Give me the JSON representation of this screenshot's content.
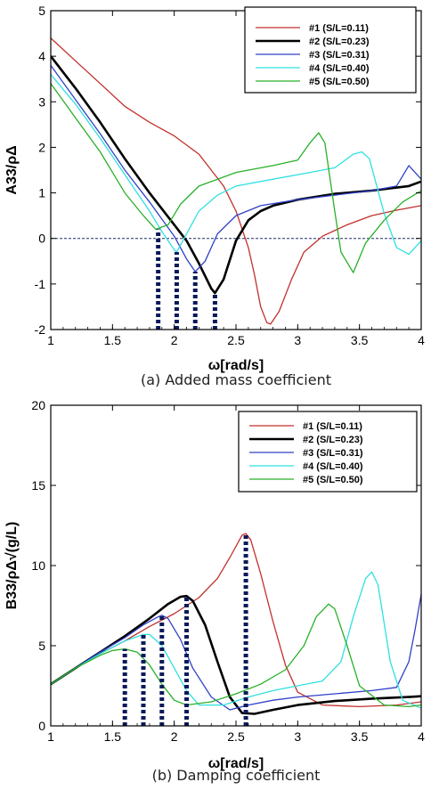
{
  "chart_data": [
    {
      "type": "line",
      "caption": "(a) Added mass coefficient",
      "xlabel": "ω[rad/s]",
      "ylabel": "A33/ρΔ",
      "xlim": [
        1,
        4
      ],
      "ylim": [
        -2,
        5
      ],
      "xticks": [
        "1",
        "1.5",
        "2",
        "2.5",
        "3",
        "3.5",
        "4"
      ],
      "yticks": [
        "-2",
        "-1",
        "0",
        "1",
        "2",
        "3",
        "4",
        "5"
      ],
      "legend_position": "top-right",
      "reference_line_y": 0,
      "series": [
        {
          "name": "#1 (S/L=0.11)",
          "color": "#c0302c",
          "width": 1.3,
          "x": [
            1.0,
            1.2,
            1.4,
            1.6,
            1.8,
            2.0,
            2.2,
            2.4,
            2.5,
            2.6,
            2.65,
            2.7,
            2.75,
            2.78,
            2.85,
            2.95,
            3.05,
            3.2,
            3.4,
            3.6,
            3.8,
            4.0
          ],
          "y": [
            4.4,
            3.9,
            3.4,
            2.9,
            2.55,
            2.25,
            1.85,
            1.15,
            0.6,
            -0.2,
            -0.8,
            -1.5,
            -1.85,
            -1.88,
            -1.6,
            -0.9,
            -0.3,
            0.05,
            0.3,
            0.5,
            0.62,
            0.72
          ]
        },
        {
          "name": "#2 (S/L=0.23)",
          "color": "#000000",
          "width": 2.6,
          "x": [
            1.0,
            1.2,
            1.4,
            1.6,
            1.8,
            2.0,
            2.1,
            2.2,
            2.3,
            2.33,
            2.4,
            2.5,
            2.6,
            2.7,
            2.8,
            3.0,
            3.3,
            3.6,
            3.9,
            4.0
          ],
          "y": [
            4.0,
            3.3,
            2.55,
            1.75,
            1.0,
            0.3,
            -0.05,
            -0.55,
            -1.1,
            -1.2,
            -0.9,
            -0.05,
            0.4,
            0.6,
            0.72,
            0.85,
            0.98,
            1.05,
            1.15,
            1.25
          ]
        },
        {
          "name": "#3 (S/L=0.31)",
          "color": "#3040c8",
          "width": 1.3,
          "x": [
            1.0,
            1.2,
            1.4,
            1.6,
            1.8,
            2.0,
            2.1,
            2.17,
            2.25,
            2.35,
            2.5,
            2.7,
            3.0,
            3.3,
            3.6,
            3.8,
            3.9,
            4.0
          ],
          "y": [
            3.8,
            3.05,
            2.3,
            1.5,
            0.8,
            0.05,
            -0.45,
            -0.73,
            -0.5,
            0.1,
            0.5,
            0.72,
            0.85,
            0.95,
            1.05,
            1.15,
            1.6,
            1.3
          ]
        },
        {
          "name": "#4 (S/L=0.40)",
          "color": "#30e0e0",
          "width": 1.3,
          "x": [
            1.0,
            1.2,
            1.4,
            1.6,
            1.8,
            1.9,
            2.0,
            2.02,
            2.1,
            2.2,
            2.35,
            2.5,
            2.8,
            3.1,
            3.3,
            3.45,
            3.52,
            3.58,
            3.7,
            3.8,
            3.9,
            4.0
          ],
          "y": [
            3.6,
            2.95,
            2.2,
            1.4,
            0.6,
            0.15,
            -0.25,
            -0.3,
            0.1,
            0.6,
            0.95,
            1.15,
            1.3,
            1.45,
            1.55,
            1.85,
            1.9,
            1.75,
            0.55,
            -0.2,
            -0.35,
            -0.05
          ]
        },
        {
          "name": "#5 (S/L=0.50)",
          "color": "#28b028",
          "width": 1.3,
          "x": [
            1.0,
            1.2,
            1.4,
            1.6,
            1.75,
            1.85,
            1.95,
            2.05,
            2.2,
            2.5,
            2.8,
            3.0,
            3.1,
            3.17,
            3.22,
            3.3,
            3.35,
            3.45,
            3.55,
            3.7,
            3.85,
            4.0
          ],
          "y": [
            3.4,
            2.65,
            1.9,
            1.0,
            0.5,
            0.2,
            0.3,
            0.75,
            1.15,
            1.45,
            1.6,
            1.72,
            2.1,
            2.32,
            2.1,
            0.6,
            -0.3,
            -0.75,
            -0.1,
            0.4,
            0.8,
            1.05
          ]
        }
      ],
      "markers": [
        {
          "x": 1.87,
          "y": 0.2
        },
        {
          "x": 2.02,
          "y": -0.3
        },
        {
          "x": 2.17,
          "y": -0.73
        },
        {
          "x": 2.33,
          "y": -1.2
        }
      ]
    },
    {
      "type": "line",
      "caption": "(b) Damping coefficient",
      "xlabel": "ω[rad/s]",
      "ylabel": "B33/ρΔ√(g/L)",
      "xlim": [
        1,
        4
      ],
      "ylim": [
        0,
        20
      ],
      "xticks": [
        "1",
        "1.5",
        "2",
        "2.5",
        "3",
        "3.5",
        "4"
      ],
      "yticks": [
        "0",
        "5",
        "10",
        "15",
        "20"
      ],
      "legend_position": "top-right",
      "series": [
        {
          "name": "#1 (S/L=0.11)",
          "color": "#c0302c",
          "width": 1.3,
          "x": [
            1.0,
            1.2,
            1.4,
            1.6,
            1.8,
            2.0,
            2.2,
            2.35,
            2.45,
            2.55,
            2.58,
            2.62,
            2.7,
            2.8,
            2.9,
            3.0,
            3.2,
            3.5,
            3.8,
            4.0
          ],
          "y": [
            2.6,
            3.6,
            4.5,
            5.3,
            6.2,
            7.0,
            8.0,
            9.2,
            10.5,
            11.9,
            12.0,
            11.6,
            9.5,
            6.5,
            3.8,
            2.1,
            1.3,
            1.2,
            1.3,
            1.5
          ]
        },
        {
          "name": "#2 (S/L=0.23)",
          "color": "#000000",
          "width": 2.6,
          "x": [
            1.0,
            1.2,
            1.4,
            1.6,
            1.8,
            1.95,
            2.05,
            2.1,
            2.15,
            2.25,
            2.35,
            2.45,
            2.55,
            2.65,
            2.8,
            3.0,
            3.3,
            3.6,
            3.9,
            4.0
          ],
          "y": [
            2.6,
            3.6,
            4.6,
            5.6,
            6.7,
            7.6,
            8.05,
            8.1,
            7.8,
            6.3,
            4.0,
            1.8,
            0.8,
            0.75,
            1.0,
            1.3,
            1.55,
            1.7,
            1.8,
            1.85
          ]
        },
        {
          "name": "#3 (S/L=0.31)",
          "color": "#3040c8",
          "width": 1.3,
          "x": [
            1.0,
            1.2,
            1.4,
            1.6,
            1.75,
            1.87,
            1.9,
            1.95,
            2.05,
            2.15,
            2.3,
            2.45,
            2.6,
            2.8,
            3.0,
            3.3,
            3.6,
            3.8,
            3.9,
            3.95,
            4.0
          ],
          "y": [
            2.6,
            3.6,
            4.6,
            5.5,
            6.3,
            6.8,
            6.9,
            6.7,
            5.4,
            3.6,
            1.8,
            1.0,
            1.3,
            1.6,
            1.8,
            2.0,
            2.2,
            2.4,
            4.0,
            6.0,
            8.2
          ]
        },
        {
          "name": "#4 (S/L=0.40)",
          "color": "#30e0e0",
          "width": 1.3,
          "x": [
            1.0,
            1.2,
            1.4,
            1.6,
            1.75,
            1.8,
            1.9,
            2.0,
            2.1,
            2.2,
            2.4,
            2.6,
            2.8,
            3.0,
            3.2,
            3.35,
            3.45,
            3.55,
            3.6,
            3.65,
            3.75,
            3.85,
            4.0
          ],
          "y": [
            2.6,
            3.6,
            4.5,
            5.3,
            5.7,
            5.7,
            5.0,
            3.6,
            2.2,
            1.3,
            1.3,
            1.8,
            2.2,
            2.5,
            2.8,
            4.0,
            6.8,
            9.2,
            9.6,
            8.8,
            4.0,
            1.6,
            1.1
          ]
        },
        {
          "name": "#5 (S/L=0.50)",
          "color": "#28b028",
          "width": 1.3,
          "x": [
            1.0,
            1.2,
            1.4,
            1.5,
            1.6,
            1.7,
            1.8,
            1.9,
            2.0,
            2.1,
            2.3,
            2.5,
            2.7,
            2.9,
            3.05,
            3.15,
            3.25,
            3.3,
            3.4,
            3.5,
            3.7,
            3.9,
            4.0
          ],
          "y": [
            2.6,
            3.6,
            4.4,
            4.7,
            4.8,
            4.6,
            3.8,
            2.6,
            1.6,
            1.3,
            1.5,
            2.0,
            2.6,
            3.5,
            5.0,
            6.8,
            7.6,
            7.3,
            5.0,
            2.5,
            1.3,
            1.2,
            1.3
          ]
        }
      ],
      "markers": [
        {
          "x": 1.6,
          "y": 4.8
        },
        {
          "x": 1.75,
          "y": 5.7
        },
        {
          "x": 1.9,
          "y": 6.9
        },
        {
          "x": 2.1,
          "y": 8.1
        },
        {
          "x": 2.58,
          "y": 12.0
        }
      ]
    }
  ]
}
